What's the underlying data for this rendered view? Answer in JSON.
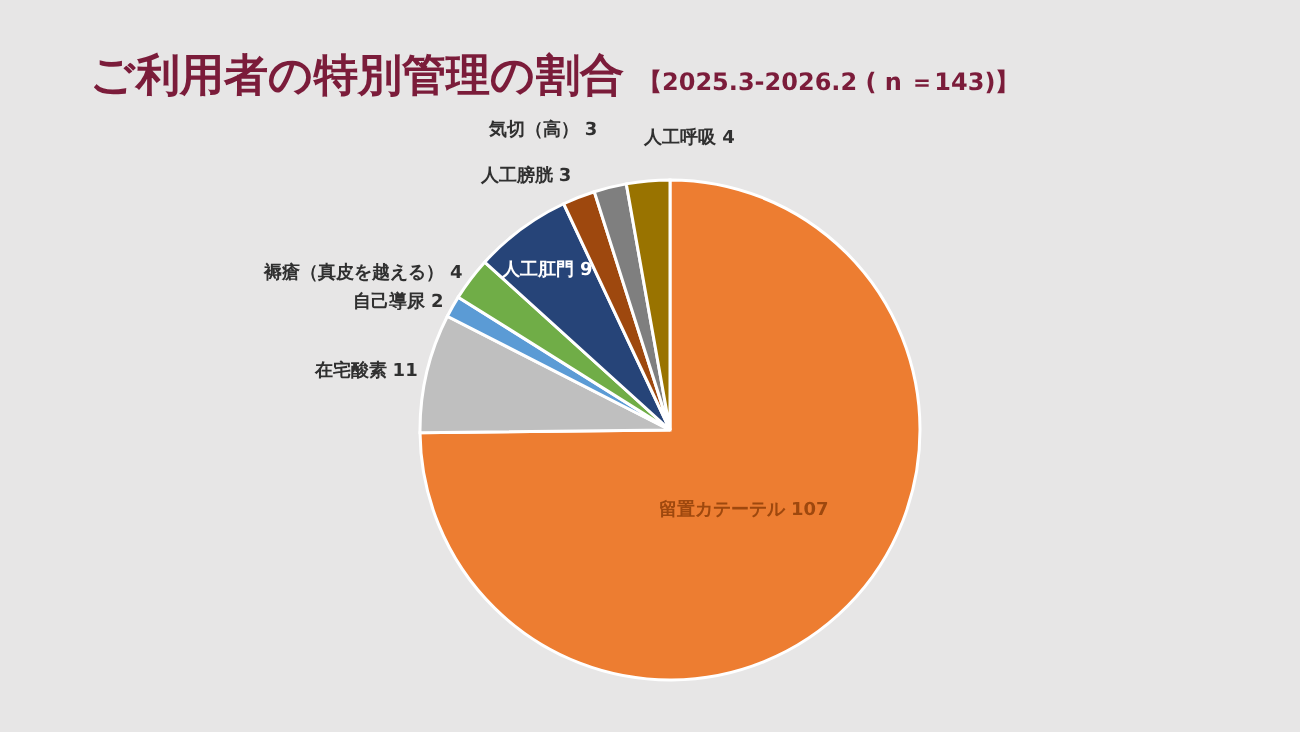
{
  "chart_data": {
    "type": "pie",
    "title": "ご利用者の特別管理の割合",
    "subtitle": "【2025.3-2026.2 ( n ＝143)】",
    "categories": [
      "留置カテーテル",
      "在宅酸素",
      "自己導尿",
      "褥瘡（真皮を越える）",
      "人工肛門",
      "人工膀胱",
      "気切（高）",
      "人工呼吸"
    ],
    "values": [
      107,
      11,
      2,
      4,
      9,
      3,
      3,
      4
    ],
    "colors": [
      "#ed7d31",
      "#bfbfbf",
      "#5b9bd5",
      "#70ad47",
      "#264478",
      "#9e480e",
      "#7f7f7f",
      "#997300"
    ],
    "data_labels": true
  }
}
